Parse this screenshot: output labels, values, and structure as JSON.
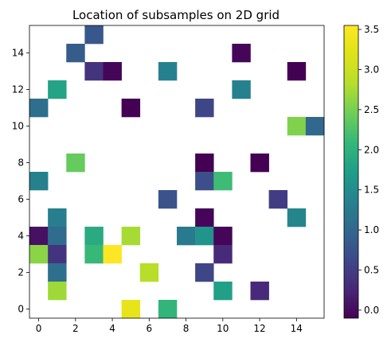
{
  "chart_data": {
    "type": "heatmap",
    "title": "Location of subsamples on 2D grid",
    "xlabel": "",
    "ylabel": "",
    "xlim": [
      -0.5,
      15.5
    ],
    "ylim": [
      -0.5,
      15.5
    ],
    "xticks": [
      0,
      2,
      4,
      6,
      8,
      10,
      12,
      14
    ],
    "yticks": [
      0,
      2,
      4,
      6,
      8,
      10,
      12,
      14
    ],
    "grid": false,
    "colormap": "viridis",
    "colorbar": {
      "min": -0.1,
      "max": 3.55,
      "ticks": [
        0.0,
        0.5,
        1.0,
        1.5,
        2.0,
        2.5,
        3.0,
        3.5
      ],
      "tick_labels": [
        "0.0",
        "0.5",
        "1.0",
        "1.5",
        "2.0",
        "2.5",
        "3.0",
        "3.5"
      ]
    },
    "cells": [
      {
        "x": 3,
        "y": 15,
        "value": 0.8
      },
      {
        "x": 2,
        "y": 14,
        "value": 0.85
      },
      {
        "x": 11,
        "y": 14,
        "value": -0.05
      },
      {
        "x": 3,
        "y": 13,
        "value": 0.4
      },
      {
        "x": 4,
        "y": 13,
        "value": -0.05
      },
      {
        "x": 7,
        "y": 13,
        "value": 1.35
      },
      {
        "x": 14,
        "y": 13,
        "value": -0.1
      },
      {
        "x": 1,
        "y": 12,
        "value": 1.8
      },
      {
        "x": 11,
        "y": 12,
        "value": 1.35
      },
      {
        "x": 0,
        "y": 11,
        "value": 1.1
      },
      {
        "x": 5,
        "y": 11,
        "value": -0.1
      },
      {
        "x": 9,
        "y": 11,
        "value": 0.6
      },
      {
        "x": 14,
        "y": 10,
        "value": 2.55
      },
      {
        "x": 15,
        "y": 10,
        "value": 1.0
      },
      {
        "x": 2,
        "y": 8,
        "value": 2.4
      },
      {
        "x": 9,
        "y": 8,
        "value": -0.1
      },
      {
        "x": 12,
        "y": 8,
        "value": -0.1
      },
      {
        "x": 0,
        "y": 7,
        "value": 1.35
      },
      {
        "x": 9,
        "y": 7,
        "value": 0.7
      },
      {
        "x": 10,
        "y": 7,
        "value": 2.15
      },
      {
        "x": 7,
        "y": 6,
        "value": 0.75
      },
      {
        "x": 13,
        "y": 6,
        "value": 0.5
      },
      {
        "x": 1,
        "y": 5,
        "value": 1.3
      },
      {
        "x": 9,
        "y": 5,
        "value": -0.05
      },
      {
        "x": 14,
        "y": 5,
        "value": 1.4
      },
      {
        "x": 0,
        "y": 4,
        "value": 0.05
      },
      {
        "x": 1,
        "y": 4,
        "value": 1.05
      },
      {
        "x": 3,
        "y": 4,
        "value": 1.9
      },
      {
        "x": 5,
        "y": 4,
        "value": 2.75
      },
      {
        "x": 8,
        "y": 4,
        "value": 1.25
      },
      {
        "x": 9,
        "y": 4,
        "value": 1.6
      },
      {
        "x": 10,
        "y": 4,
        "value": -0.05
      },
      {
        "x": 0,
        "y": 3,
        "value": 2.6
      },
      {
        "x": 1,
        "y": 3,
        "value": 0.4
      },
      {
        "x": 3,
        "y": 3,
        "value": 2.1
      },
      {
        "x": 4,
        "y": 3,
        "value": 3.55
      },
      {
        "x": 10,
        "y": 3,
        "value": 0.3
      },
      {
        "x": 1,
        "y": 2,
        "value": 1.1
      },
      {
        "x": 6,
        "y": 2,
        "value": 2.85
      },
      {
        "x": 9,
        "y": 2,
        "value": 0.6
      },
      {
        "x": 1,
        "y": 1,
        "value": 2.7
      },
      {
        "x": 10,
        "y": 1,
        "value": 1.75
      },
      {
        "x": 12,
        "y": 1,
        "value": 0.3
      },
      {
        "x": 5,
        "y": 0,
        "value": 3.3
      },
      {
        "x": 7,
        "y": 0,
        "value": 2.05
      }
    ]
  }
}
